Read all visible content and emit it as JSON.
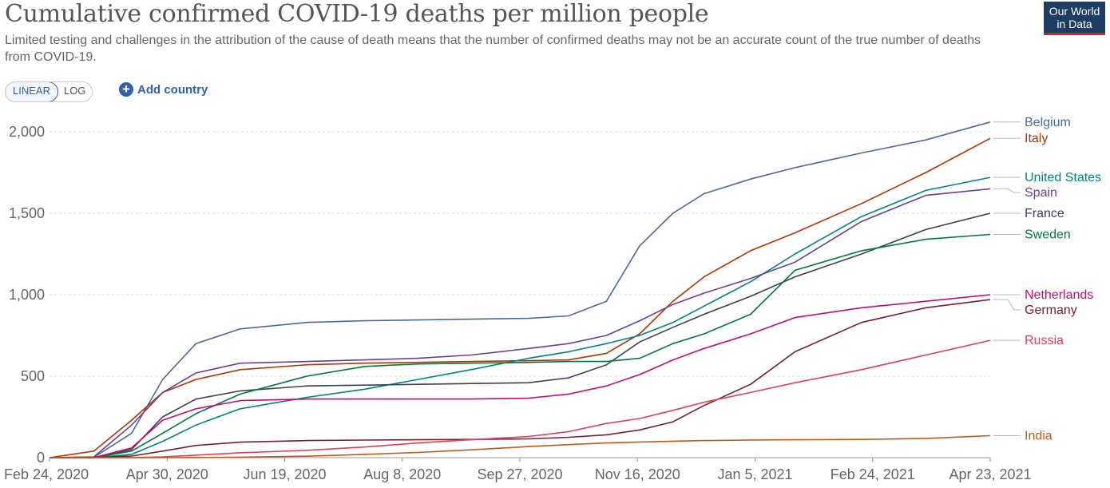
{
  "header": {
    "title": "Cumulative confirmed COVID-19 deaths per million people",
    "subtitle": "Limited testing and challenges in the attribution of the cause of death means that the number of confirmed deaths may not be an accurate count of the true number of deaths from COVID-19.",
    "logo_line1": "Our World",
    "logo_line2": "in Data"
  },
  "controls": {
    "linear_label": "LINEAR",
    "log_label": "LOG",
    "add_country_label": "Add country"
  },
  "colors": {
    "Belgium": "#4c6a9c",
    "Italy": "#b13507",
    "United States": "#00847e",
    "Spain": "#6d3e91",
    "France": "#38405b",
    "Sweden": "#00783f",
    "Netherlands": "#c40a77",
    "Germany": "#7a1d2f",
    "Russia": "#e03e56",
    "India": "#c05917"
  },
  "chart_data": {
    "type": "line",
    "ylim": [
      0,
      2000
    ],
    "yticks": [
      0,
      500,
      1000,
      1500,
      2000
    ],
    "ytick_labels": [
      "0",
      "500",
      "1,000",
      "1,500",
      "2,000"
    ],
    "xtick_labels": [
      "Feb 24, 2020",
      "Apr 30, 2020",
      "Jun 19, 2020",
      "Aug 8, 2020",
      "Sep 27, 2020",
      "Nov 16, 2020",
      "Jan 5, 2021",
      "Feb 24, 2021",
      "Apr 23, 2021"
    ],
    "x": [
      "2020-02-24",
      "2020-03-15",
      "2020-04-01",
      "2020-04-15",
      "2020-04-30",
      "2020-05-20",
      "2020-06-19",
      "2020-07-15",
      "2020-08-08",
      "2020-09-01",
      "2020-09-27",
      "2020-10-15",
      "2020-11-01",
      "2020-11-16",
      "2020-12-01",
      "2020-12-15",
      "2021-01-05",
      "2021-01-25",
      "2021-02-24",
      "2021-03-25",
      "2021-04-23"
    ],
    "grid": true,
    "legend": "right",
    "series": [
      {
        "name": "Belgium",
        "values": [
          0,
          2,
          150,
          480,
          700,
          790,
          830,
          840,
          845,
          850,
          855,
          870,
          960,
          1300,
          1500,
          1620,
          1710,
          1780,
          1870,
          1950,
          2060
        ]
      },
      {
        "name": "Italy",
        "values": [
          0,
          40,
          230,
          400,
          480,
          540,
          570,
          580,
          585,
          590,
          595,
          600,
          640,
          760,
          960,
          1110,
          1270,
          1380,
          1560,
          1750,
          1960
        ]
      },
      {
        "name": "United States",
        "values": [
          0,
          0,
          20,
          100,
          200,
          300,
          370,
          420,
          480,
          540,
          610,
          650,
          700,
          750,
          830,
          930,
          1080,
          1250,
          1480,
          1640,
          1720
        ]
      },
      {
        "name": "Spain",
        "values": [
          0,
          5,
          200,
          400,
          520,
          580,
          590,
          600,
          610,
          630,
          670,
          700,
          750,
          840,
          940,
          1010,
          1100,
          1200,
          1450,
          1610,
          1650
        ]
      },
      {
        "name": "France",
        "values": [
          0,
          0,
          50,
          250,
          360,
          410,
          440,
          445,
          450,
          455,
          460,
          490,
          570,
          710,
          800,
          880,
          990,
          1110,
          1250,
          1400,
          1500
        ]
      },
      {
        "name": "Sweden",
        "values": [
          0,
          0,
          40,
          150,
          270,
          390,
          500,
          560,
          575,
          580,
          585,
          590,
          590,
          610,
          700,
          760,
          880,
          1150,
          1270,
          1340,
          1370
        ]
      },
      {
        "name": "Netherlands",
        "values": [
          0,
          0,
          60,
          230,
          300,
          350,
          360,
          360,
          360,
          360,
          365,
          390,
          440,
          510,
          600,
          670,
          760,
          860,
          920,
          960,
          1000
        ]
      },
      {
        "name": "Germany",
        "values": [
          0,
          0,
          10,
          40,
          75,
          95,
          105,
          108,
          110,
          112,
          115,
          125,
          140,
          170,
          220,
          320,
          450,
          650,
          830,
          920,
          970
        ]
      },
      {
        "name": "Russia",
        "values": [
          0,
          0,
          0,
          5,
          15,
          30,
          45,
          65,
          90,
          110,
          130,
          160,
          210,
          240,
          290,
          340,
          400,
          460,
          540,
          630,
          720
        ]
      },
      {
        "name": "India",
        "values": [
          0,
          0,
          0,
          0,
          1,
          3,
          9,
          20,
          32,
          48,
          68,
          80,
          90,
          96,
          101,
          105,
          108,
          110,
          112,
          118,
          135
        ]
      }
    ]
  }
}
